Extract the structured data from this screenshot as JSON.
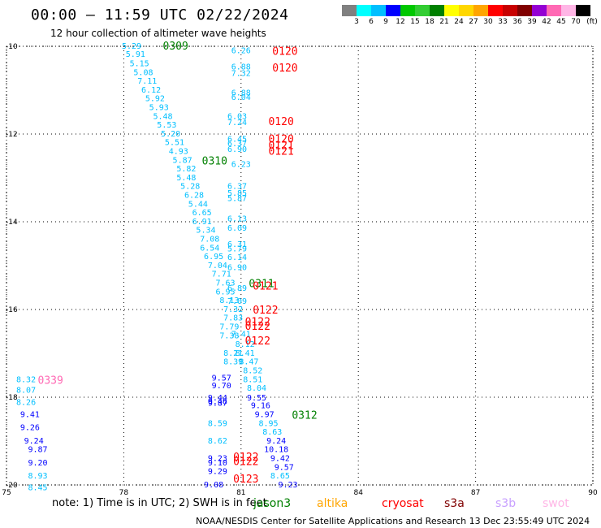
{
  "title": "00:00 – 11:59 UTC 02/22/2024",
  "subtitle": "12 hour collection of altimeter wave heights",
  "colorbar": {
    "unit": "(ft)",
    "ticks": [
      "3",
      "6",
      "9",
      "12",
      "15",
      "18",
      "21",
      "24",
      "27",
      "30",
      "33",
      "36",
      "39",
      "42",
      "45",
      "70"
    ],
    "colors": [
      "#808080",
      "#00ffff",
      "#00bfff",
      "#0000ff",
      "#00c800",
      "#32cd32",
      "#008000",
      "#ffff00",
      "#ffd700",
      "#ffa500",
      "#ff0000",
      "#c80000",
      "#800000",
      "#9400d3",
      "#ff69b4",
      "#ffb6e6",
      "#000000"
    ]
  },
  "footer": {
    "note": "note: 1) Time is in UTC; 2) SWH is in feet",
    "missions": [
      {
        "name": "jason3",
        "color": "#008000"
      },
      {
        "name": "altika",
        "color": "#ffa500"
      },
      {
        "name": "cryosat",
        "color": "#ff0000"
      },
      {
        "name": "s3a",
        "color": "#800000"
      },
      {
        "name": "s3b",
        "color": "#c8a0ff"
      },
      {
        "name": "swot",
        "color": "#ffb6e6"
      }
    ],
    "credit": "NOAA/NESDIS Center for Satellite Applications and Research   13 Dec 23:55:49 UTC 2024"
  },
  "chart_data": {
    "type": "scatter",
    "xlim": [
      75,
      90
    ],
    "ylim": [
      -20,
      -10
    ],
    "x_ticks": [
      "75",
      "78",
      "81",
      "84",
      "87",
      "90"
    ],
    "y_ticks": [
      "-10",
      "-12",
      "-14",
      "-16",
      "-18",
      "-20"
    ],
    "grid": true,
    "time_labels": [
      {
        "text": "0309",
        "lon": 79.0,
        "lat": -9.98,
        "color": "#008000"
      },
      {
        "text": "0310",
        "lon": 80.0,
        "lat": -12.6,
        "color": "#008000"
      },
      {
        "text": "0311",
        "lon": 81.2,
        "lat": -15.4,
        "color": "#008000"
      },
      {
        "text": "0312",
        "lon": 82.3,
        "lat": -18.4,
        "color": "#008000"
      },
      {
        "text": "0120",
        "lon": 81.8,
        "lat": -10.1,
        "color": "#ff0000"
      },
      {
        "text": "0120",
        "lon": 81.8,
        "lat": -10.48,
        "color": "#ff0000"
      },
      {
        "text": "0120",
        "lon": 81.7,
        "lat": -11.7,
        "color": "#ff0000"
      },
      {
        "text": "0120",
        "lon": 81.7,
        "lat": -12.1,
        "color": "#ff0000"
      },
      {
        "text": "0121",
        "lon": 81.7,
        "lat": -12.25,
        "color": "#ff0000"
      },
      {
        "text": "0121",
        "lon": 81.7,
        "lat": -12.38,
        "color": "#ff0000"
      },
      {
        "text": "0121",
        "lon": 81.3,
        "lat": -15.45,
        "color": "#ff0000"
      },
      {
        "text": "0122",
        "lon": 81.3,
        "lat": -16.0,
        "color": "#ff0000"
      },
      {
        "text": "0122",
        "lon": 81.1,
        "lat": -16.27,
        "color": "#ff0000"
      },
      {
        "text": "0122",
        "lon": 81.1,
        "lat": -16.37,
        "color": "#ff0000"
      },
      {
        "text": "0122",
        "lon": 81.1,
        "lat": -16.7,
        "color": "#ff0000"
      },
      {
        "text": "0122",
        "lon": 80.8,
        "lat": -19.35,
        "color": "#ff0000"
      },
      {
        "text": "0122",
        "lon": 80.8,
        "lat": -19.45,
        "color": "#ff0000"
      },
      {
        "text": "0123",
        "lon": 80.8,
        "lat": -19.85,
        "color": "#ff0000"
      },
      {
        "text": "0339",
        "lon": 75.8,
        "lat": -17.6,
        "color": "#ff69b4"
      }
    ],
    "series": [
      {
        "name": "jason3",
        "points": [
          [
            78.2,
            -9.98,
            "5.29"
          ],
          [
            78.3,
            -10.17,
            "5.91"
          ],
          [
            78.4,
            -10.38,
            "5.15"
          ],
          [
            78.5,
            -10.58,
            "5.08"
          ],
          [
            78.6,
            -10.78,
            "7.11"
          ],
          [
            78.7,
            -10.98,
            "6.12"
          ],
          [
            78.8,
            -11.18,
            "5.92"
          ],
          [
            78.9,
            -11.38,
            "5.93"
          ],
          [
            79.0,
            -11.58,
            "5.48"
          ],
          [
            79.1,
            -11.78,
            "5.53"
          ],
          [
            79.2,
            -11.98,
            "5.20"
          ],
          [
            79.3,
            -12.18,
            "5.51"
          ],
          [
            79.4,
            -12.38,
            "4.93"
          ],
          [
            79.5,
            -12.58,
            "5.87"
          ],
          [
            79.6,
            -12.78,
            "5.82"
          ],
          [
            79.6,
            -12.98,
            "5.48"
          ],
          [
            79.7,
            -13.18,
            "5.28"
          ],
          [
            79.8,
            -13.38,
            "6.28"
          ],
          [
            79.9,
            -13.58,
            "5.44"
          ],
          [
            80.0,
            -13.78,
            "6.65"
          ],
          [
            80.0,
            -13.98,
            "6.91"
          ],
          [
            80.1,
            -14.18,
            "5.34"
          ],
          [
            80.2,
            -14.38,
            "7.08"
          ],
          [
            80.2,
            -14.58,
            "6.54"
          ],
          [
            80.3,
            -14.78,
            "6.95"
          ],
          [
            80.4,
            -14.98,
            "7.04"
          ],
          [
            80.5,
            -15.18,
            "7.71"
          ],
          [
            80.6,
            -15.38,
            "7.63"
          ],
          [
            80.6,
            -15.58,
            "6.95"
          ],
          [
            80.7,
            -15.78,
            "8.13"
          ],
          [
            80.8,
            -15.98,
            "7.32"
          ],
          [
            80.8,
            -16.18,
            "7.83"
          ],
          [
            80.7,
            -16.38,
            "7.79"
          ],
          [
            80.7,
            -16.58,
            "7.38"
          ],
          [
            80.8,
            -16.98,
            "8.21"
          ],
          [
            80.8,
            -17.18,
            "8.39"
          ],
          [
            81.0,
            -10.08,
            "6.26"
          ],
          [
            81.0,
            -10.45,
            "6.88"
          ],
          [
            81.0,
            -10.6,
            "7.32"
          ],
          [
            81.0,
            -11.05,
            "6.88"
          ],
          [
            81.0,
            -11.15,
            "6.04"
          ],
          [
            80.9,
            -11.58,
            "6.03"
          ],
          [
            80.9,
            -11.72,
            "7.24"
          ],
          [
            80.9,
            -12.1,
            "6.45"
          ],
          [
            80.9,
            -12.2,
            "6.37"
          ],
          [
            80.9,
            -12.33,
            "6.90"
          ],
          [
            81.0,
            -12.68,
            "6.23"
          ],
          [
            80.9,
            -13.18,
            "6.37"
          ],
          [
            80.9,
            -13.33,
            "5.85"
          ],
          [
            80.9,
            -13.45,
            "5.87"
          ],
          [
            80.9,
            -13.92,
            "6.13"
          ],
          [
            80.9,
            -14.13,
            "6.09"
          ],
          [
            80.9,
            -14.5,
            "6.31"
          ],
          [
            80.9,
            -14.6,
            "5.79"
          ],
          [
            80.9,
            -14.8,
            "6.14"
          ],
          [
            80.9,
            -15.03,
            "6.90"
          ],
          [
            80.9,
            -15.5,
            "6.89"
          ],
          [
            80.9,
            -15.8,
            "7.09"
          ],
          [
            81.0,
            -16.55,
            "7.41"
          ],
          [
            81.1,
            -16.78,
            "8.12"
          ],
          [
            81.1,
            -16.98,
            "8.41"
          ],
          [
            81.2,
            -17.18,
            "8.47"
          ],
          [
            81.3,
            -17.38,
            "8.52"
          ],
          [
            81.3,
            -17.58,
            "8.51"
          ],
          [
            81.4,
            -17.78,
            "8.04"
          ],
          [
            81.7,
            -18.58,
            "8.95"
          ],
          [
            81.8,
            -18.78,
            "8.63"
          ],
          [
            82.0,
            -19.78,
            "8.65"
          ],
          [
            75.5,
            -17.58,
            "8.32"
          ],
          [
            75.5,
            -17.82,
            "8.07"
          ],
          [
            75.5,
            -18.1,
            "8.26"
          ],
          [
            75.8,
            -19.78,
            "8.93"
          ],
          [
            75.8,
            -20.05,
            "8.45"
          ],
          [
            80.4,
            -18.58,
            "8.59"
          ],
          [
            80.4,
            -18.98,
            "8.62"
          ]
        ]
      },
      {
        "name": "altika",
        "points": [
          [
            80.5,
            -17.55,
            "9.57"
          ],
          [
            80.5,
            -17.72,
            "9.70"
          ],
          [
            80.4,
            -18.0,
            "9.44"
          ],
          [
            80.4,
            -18.08,
            "9.46"
          ],
          [
            80.4,
            -18.12,
            "9.87"
          ],
          [
            80.4,
            -19.38,
            "9.23"
          ],
          [
            80.4,
            -19.48,
            "9.10"
          ],
          [
            80.4,
            -19.68,
            "9.29"
          ],
          [
            80.3,
            -19.98,
            "9.08"
          ],
          [
            81.4,
            -18.0,
            "9.55"
          ],
          [
            81.5,
            -18.18,
            "9.16"
          ],
          [
            81.6,
            -18.38,
            "9.97"
          ],
          [
            81.9,
            -18.98,
            "9.24"
          ],
          [
            81.9,
            -19.18,
            "10.18"
          ],
          [
            82.0,
            -19.38,
            "9.42"
          ],
          [
            82.1,
            -19.58,
            "9.57"
          ],
          [
            82.2,
            -19.98,
            "9.23"
          ],
          [
            75.6,
            -18.38,
            "9.41"
          ],
          [
            75.6,
            -18.68,
            "9.26"
          ],
          [
            75.7,
            -18.98,
            "9.24"
          ],
          [
            75.8,
            -19.18,
            "9.87"
          ],
          [
            75.8,
            -19.48,
            "9.20"
          ]
        ]
      }
    ]
  }
}
